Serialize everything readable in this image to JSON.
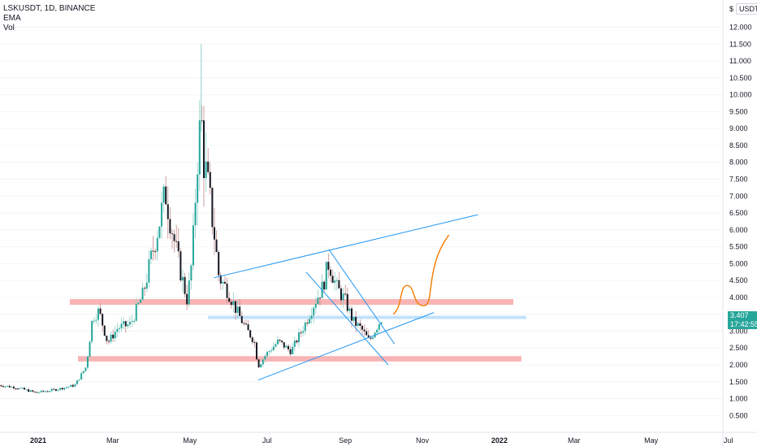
{
  "header": {
    "symbol_line": "LSKUSDT, 1D, BINANCE",
    "indicators": [
      "EMA",
      "Vol"
    ]
  },
  "toolbar": {
    "lock_symbol": "$",
    "currency": "USDT"
  },
  "price_tag": {
    "price": "3.407",
    "countdown": "17:42:55"
  },
  "colors": {
    "up": "#26a69a",
    "down": "#131722",
    "zones": "#f7a8a8",
    "lines": "#2196f3",
    "projection": "#f57c00",
    "price_tag": "#26a69a"
  },
  "chart_data": {
    "type": "candlestick",
    "title": "LSKUSDT, 1D, BINANCE",
    "x_ticks": [
      "2021",
      "Mar",
      "May",
      "Jul",
      "Sep",
      "Nov",
      "2022",
      "Mar",
      "May",
      "Jul"
    ],
    "y_ticks": [
      "12.000",
      "11.500",
      "11.000",
      "10.500",
      "10.000",
      "9.500",
      "9.000",
      "8.500",
      "8.000",
      "7.500",
      "7.000",
      "6.500",
      "6.000",
      "5.500",
      "5.000",
      "4.500",
      "4.000",
      "3.500",
      "3.000",
      "2.500",
      "2.000",
      "1.500",
      "1.000",
      "0.500"
    ],
    "ylim": [
      0.2,
      12.3
    ],
    "price_path": [
      [
        "2020-12-01",
        1.4
      ],
      [
        "2020-12-15",
        1.33
      ],
      [
        "2020-12-30",
        1.18
      ],
      [
        "2021-01-15",
        1.27
      ],
      [
        "2021-01-30",
        1.4
      ],
      [
        "2021-02-08",
        1.95
      ],
      [
        "2021-02-13",
        3.4
      ],
      [
        "2021-02-18",
        3.6
      ],
      [
        "2021-02-25",
        2.65
      ],
      [
        "2021-03-05",
        3.1
      ],
      [
        "2021-03-15",
        3.2
      ],
      [
        "2021-03-25",
        4.1
      ],
      [
        "2021-04-03",
        5.6
      ],
      [
        "2021-04-12",
        7.1
      ],
      [
        "2021-04-18",
        5.8
      ],
      [
        "2021-04-24",
        4.7
      ],
      [
        "2021-04-29",
        3.9
      ],
      [
        "2021-05-03",
        5.2
      ],
      [
        "2021-05-07",
        8.2
      ],
      [
        "2021-05-10",
        9.3
      ],
      [
        "2021-05-12",
        8.1
      ],
      [
        "2021-05-16",
        7.1
      ],
      [
        "2021-05-20",
        6.0
      ],
      [
        "2021-05-24",
        4.6
      ],
      [
        "2021-05-31",
        4.2
      ],
      [
        "2021-06-07",
        3.6
      ],
      [
        "2021-06-14",
        3.1
      ],
      [
        "2021-06-21",
        2.7
      ],
      [
        "2021-06-24",
        1.95
      ],
      [
        "2021-06-30",
        2.3
      ],
      [
        "2021-07-10",
        2.7
      ],
      [
        "2021-07-20",
        2.4
      ],
      [
        "2021-07-31",
        3.2
      ],
      [
        "2021-08-07",
        3.8
      ],
      [
        "2021-08-14",
        4.3
      ],
      [
        "2021-08-19",
        5.05
      ],
      [
        "2021-08-25",
        4.3
      ],
      [
        "2021-09-01",
        3.9
      ],
      [
        "2021-09-07",
        3.3
      ],
      [
        "2021-09-14",
        3.05
      ],
      [
        "2021-09-20",
        2.7
      ],
      [
        "2021-09-24",
        3.0
      ],
      [
        "2021-09-30",
        3.41
      ]
    ],
    "peak_wick": 11.5,
    "horizontal_zones": [
      {
        "from": 3.78,
        "to": 3.95
      },
      {
        "from": 2.1,
        "to": 2.26
      }
    ],
    "current_price_line": 3.407,
    "trendlines": [
      {
        "from": [
          "2021-06-24",
          1.55
        ],
        "to": [
          "2021-11-10",
          3.55
        ]
      },
      {
        "from": [
          "2021-05-20",
          4.58
        ],
        "to": [
          "2021-12-15",
          6.45
        ]
      },
      {
        "from": [
          "2021-08-19",
          5.42
        ],
        "to": [
          "2021-10-10",
          2.62
        ]
      },
      {
        "from": [
          "2021-08-01",
          4.75
        ],
        "to": [
          "2021-10-05",
          2.0
        ]
      }
    ],
    "projection_path": [
      [
        "2021-10-09",
        3.5
      ],
      [
        "2021-10-20",
        4.35
      ],
      [
        "2021-11-02",
        3.75
      ],
      [
        "2021-11-22",
        5.85
      ]
    ]
  }
}
